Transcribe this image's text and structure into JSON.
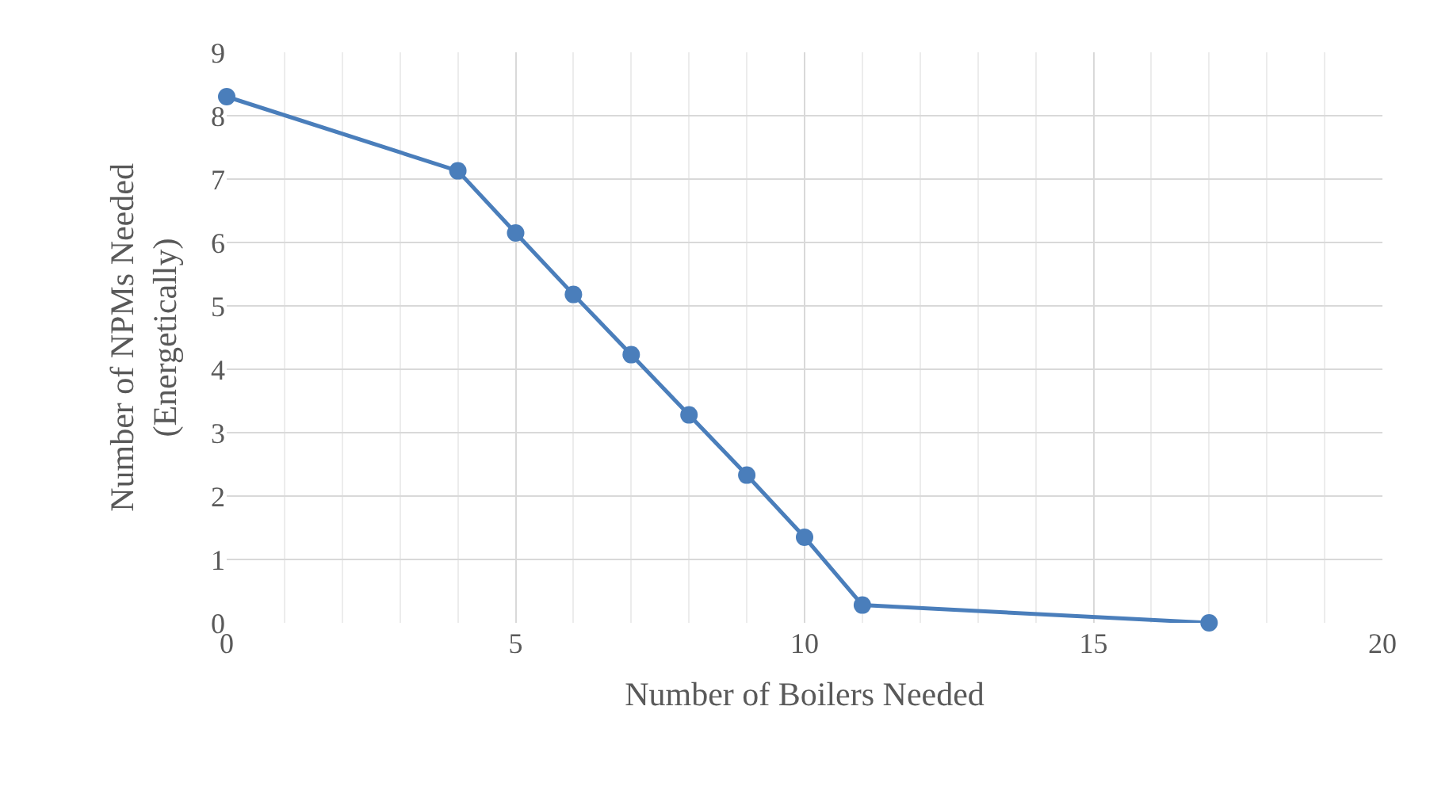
{
  "chart_data": {
    "type": "line",
    "xlabel": "Number of Boilers Needed",
    "ylabel": "Number of NPMs Needed\n(Energetically)",
    "x": [
      0,
      4,
      5,
      6,
      7,
      8,
      9,
      10,
      11,
      17
    ],
    "series": [
      {
        "color": "#4a7ebb",
        "values": [
          8.3,
          7.13,
          6.15,
          5.18,
          4.23,
          3.28,
          2.33,
          1.35,
          0.28,
          0
        ]
      }
    ],
    "xlim": [
      0,
      20
    ],
    "xticks": [
      0,
      {
        "value": 1,
        "label": null
      },
      {
        "value": 2,
        "label": null
      },
      {
        "value": 3,
        "label": null
      },
      {
        "value": 4,
        "label": null
      },
      5,
      {
        "value": 6,
        "label": null
      },
      {
        "value": 7,
        "label": null
      },
      {
        "value": 8,
        "label": null
      },
      {
        "value": 9,
        "label": null
      },
      10,
      {
        "value": 11,
        "label": null
      },
      {
        "value": 12,
        "label": null
      },
      {
        "value": 13,
        "label": null
      },
      {
        "value": 14,
        "label": null
      },
      15,
      {
        "value": 16,
        "label": null
      },
      {
        "value": 17,
        "label": null
      },
      {
        "value": 18,
        "label": null
      },
      {
        "value": 19,
        "label": null
      },
      20
    ],
    "ylim": [
      0,
      9
    ],
    "yticks": [
      0,
      1,
      2,
      3,
      4,
      5,
      6,
      7,
      8,
      9
    ],
    "grid": true,
    "marker": "circle",
    "line_style": "solid"
  }
}
